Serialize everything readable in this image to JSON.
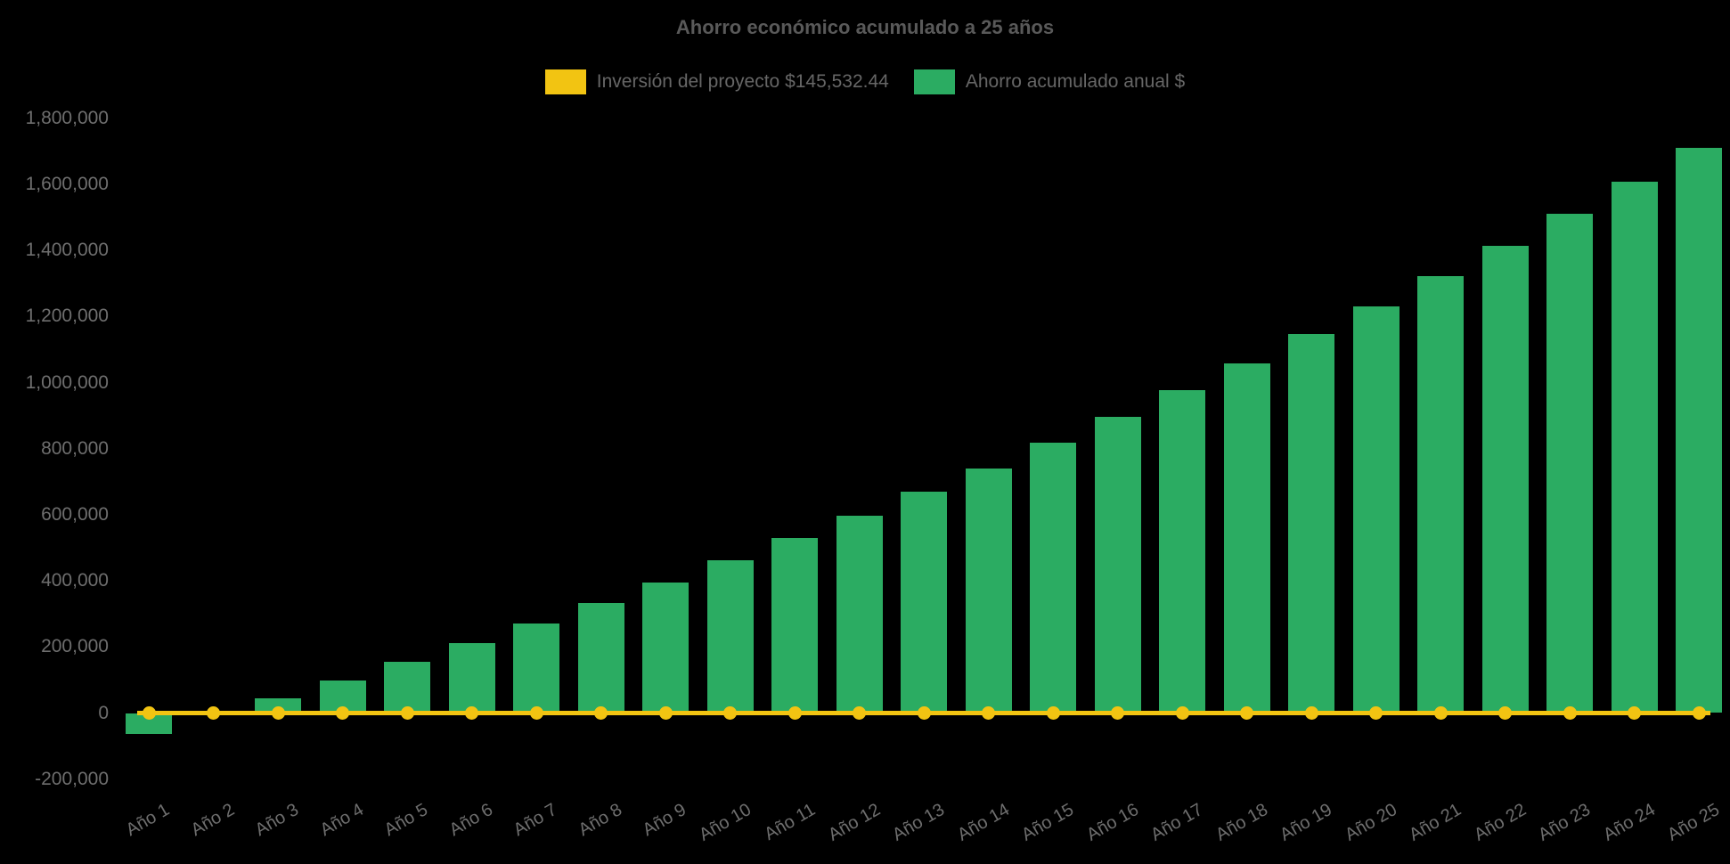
{
  "chart_data": {
    "type": "bar",
    "title": "Ahorro económico acumulado a 25 años",
    "categories": [
      "Año 1",
      "Año 2",
      "Año 3",
      "Año 4",
      "Año 5",
      "Año 6",
      "Año 7",
      "Año 8",
      "Año 9",
      "Año 10",
      "Año 11",
      "Año 12",
      "Año 13",
      "Año 14",
      "Año 15",
      "Año 16",
      "Año 17",
      "Año 18",
      "Año 19",
      "Año 20",
      "Año 21",
      "Año 22",
      "Año 23",
      "Año 24",
      "Año 25"
    ],
    "series": [
      {
        "name": "Inversión del proyecto $145,532.44",
        "type": "line",
        "color": "#F2C412",
        "values": [
          0,
          0,
          0,
          0,
          0,
          0,
          0,
          0,
          0,
          0,
          0,
          0,
          0,
          0,
          0,
          0,
          0,
          0,
          0,
          0,
          0,
          0,
          0,
          0,
          0
        ]
      },
      {
        "name": "Ahorro acumulado anual $",
        "type": "bar",
        "color": "#2BAC62",
        "values": [
          -62000,
          -5000,
          45000,
          99000,
          155000,
          211000,
          271000,
          334000,
          396000,
          463000,
          530000,
          597000,
          670000,
          741000,
          819000,
          896000,
          977000,
          1057000,
          1146000,
          1230000,
          1323000,
          1415000,
          1510000,
          1607000,
          1710000
        ]
      }
    ],
    "ylim": [
      -200000,
      1800000
    ],
    "ytick_step": 200000,
    "y_tick_labels": [
      "-200,000",
      "0",
      "200,000",
      "400,000",
      "600,000",
      "800,000",
      "1,000,000",
      "1,200,000",
      "1,400,000",
      "1,600,000",
      "1,800,000"
    ],
    "grid": false,
    "legend_position": "top",
    "xlabel": "",
    "ylabel": ""
  },
  "colors": {
    "background": "#000000",
    "title_text": "#595959",
    "legend_text": "#666666",
    "axis_text": "#6E6E6E",
    "bar_green": "#2BAC62",
    "line_yellow": "#F2C412"
  }
}
